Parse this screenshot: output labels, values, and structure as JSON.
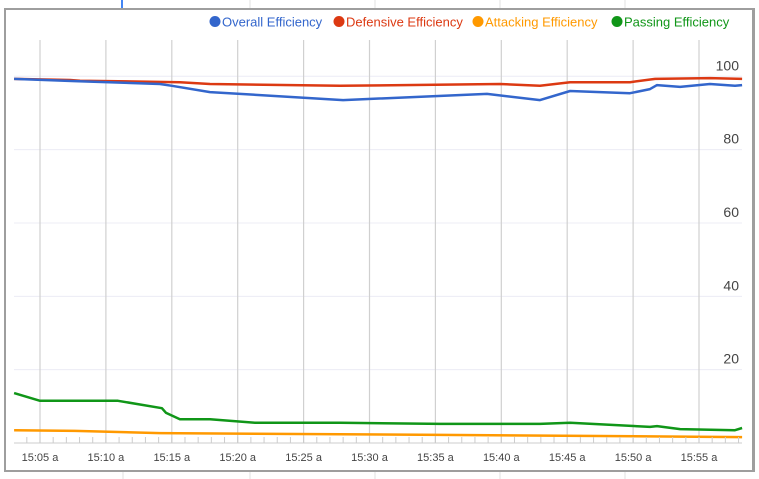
{
  "chart_data": {
    "type": "line",
    "title": "",
    "xlabel": "",
    "ylabel": "",
    "ylim": [
      0,
      100
    ],
    "yticks": [
      "20",
      "40",
      "60",
      "80",
      "100"
    ],
    "xlim": [
      "15:03:00",
      "15:58:30"
    ],
    "xticks": [
      "15:05 a",
      "15:10 a",
      "15:15 a",
      "15:20 a",
      "15:25 a",
      "15:30 a",
      "15:35 a",
      "15:40 a",
      "15:45 a",
      "15:50 a",
      "15:55 a"
    ],
    "grid": true,
    "legend_position": "top-right",
    "series": [
      {
        "name": "Overall Efficiency",
        "color": "#3366cc",
        "points": [
          [
            "15:03:02",
            99.3
          ],
          [
            "15:07:39",
            98.7
          ],
          [
            "15:14:06",
            97.9
          ],
          [
            "15:15:01",
            97.4
          ],
          [
            "15:17:54",
            95.7
          ],
          [
            "15:28:00",
            93.5
          ],
          [
            "15:38:55",
            95.2
          ],
          [
            "15:42:56",
            93.5
          ],
          [
            "15:45:13",
            96.0
          ],
          [
            "15:49:46",
            95.4
          ],
          [
            "15:51:17",
            96.5
          ],
          [
            "15:51:49",
            97.6
          ],
          [
            "15:53:34",
            97.1
          ],
          [
            "15:55:50",
            97.9
          ],
          [
            "15:57:44",
            97.4
          ],
          [
            "15:58:16",
            97.6
          ]
        ]
      },
      {
        "name": "Defensive Efficiency",
        "color": "#dc3912",
        "points": [
          [
            "15:03:02",
            99.3
          ],
          [
            "15:07:17",
            99.0
          ],
          [
            "15:08:02",
            98.8
          ],
          [
            "15:15:37",
            98.4
          ],
          [
            "15:17:54",
            97.9
          ],
          [
            "15:27:46",
            97.4
          ],
          [
            "15:39:54",
            97.9
          ],
          [
            "15:42:56",
            97.4
          ],
          [
            "15:45:13",
            98.4
          ],
          [
            "15:49:46",
            98.4
          ],
          [
            "15:51:40",
            99.3
          ],
          [
            "15:55:50",
            99.5
          ],
          [
            "15:58:16",
            99.3
          ]
        ]
      },
      {
        "name": "Attacking Efficiency",
        "color": "#ff9900",
        "points": [
          [
            "15:03:02",
            3.5
          ],
          [
            "15:07:39",
            3.3
          ],
          [
            "15:14:06",
            2.7
          ],
          [
            "15:21:19",
            2.5
          ],
          [
            "15:35:21",
            2.2
          ],
          [
            "15:47:30",
            1.9
          ],
          [
            "15:58:16",
            1.6
          ]
        ]
      },
      {
        "name": "Passing Efficiency",
        "color": "#109618",
        "points": [
          [
            "15:03:02",
            13.6
          ],
          [
            "15:05:00",
            11.5
          ],
          [
            "15:10:55",
            11.5
          ],
          [
            "15:14:15",
            9.5
          ],
          [
            "15:14:34",
            8.2
          ],
          [
            "15:15:37",
            6.5
          ],
          [
            "15:17:54",
            6.5
          ],
          [
            "15:21:19",
            5.5
          ],
          [
            "15:27:46",
            5.5
          ],
          [
            "15:35:21",
            5.2
          ],
          [
            "15:42:56",
            5.2
          ],
          [
            "15:45:13",
            5.5
          ],
          [
            "15:51:17",
            4.4
          ],
          [
            "15:51:49",
            4.6
          ],
          [
            "15:53:34",
            3.8
          ],
          [
            "15:57:44",
            3.5
          ],
          [
            "15:58:16",
            4.1
          ]
        ]
      }
    ]
  }
}
